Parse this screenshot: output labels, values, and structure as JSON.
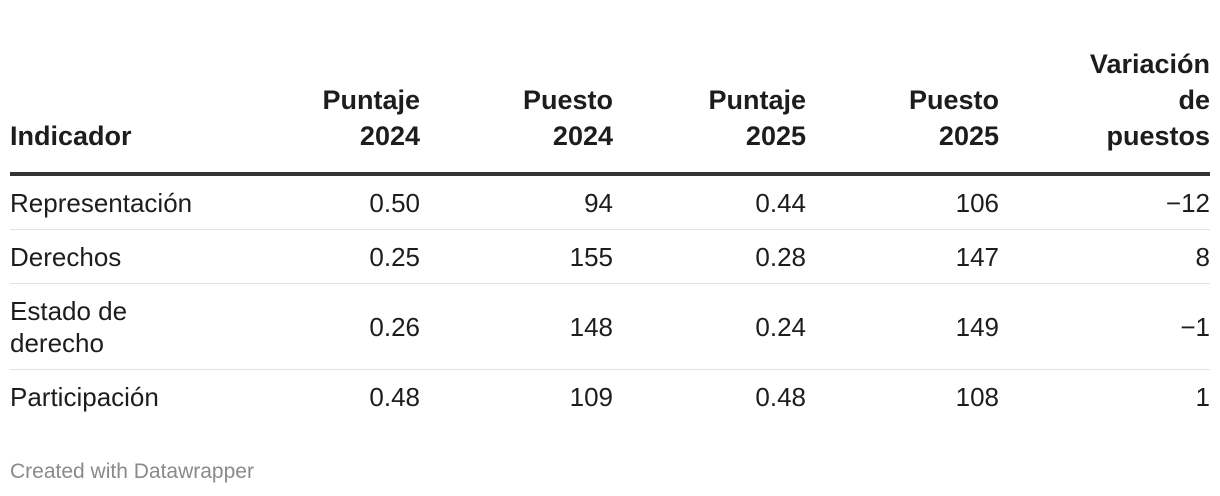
{
  "chart_data": {
    "type": "table",
    "columns": [
      [
        "Indicador"
      ],
      [
        "Puntaje",
        "2024"
      ],
      [
        "Puesto",
        "2024"
      ],
      [
        "Puntaje",
        "2025"
      ],
      [
        "Puesto",
        "2025"
      ],
      [
        "Variación",
        "de",
        "puestos"
      ]
    ],
    "rows": [
      {
        "indicador": [
          "Representación"
        ],
        "puntaje_2024": "0.50",
        "puesto_2024": "94",
        "puntaje_2025": "0.44",
        "puesto_2025": "106",
        "variacion": "−12"
      },
      {
        "indicador": [
          "Derechos"
        ],
        "puntaje_2024": "0.25",
        "puesto_2024": "155",
        "puntaje_2025": "0.28",
        "puesto_2025": "147",
        "variacion": "8"
      },
      {
        "indicador": [
          "Estado de",
          "derecho"
        ],
        "puntaje_2024": "0.26",
        "puesto_2024": "148",
        "puntaje_2025": "0.24",
        "puesto_2025": "149",
        "variacion": "−1"
      },
      {
        "indicador": [
          "Participación"
        ],
        "puntaje_2024": "0.48",
        "puesto_2024": "109",
        "puntaje_2025": "0.48",
        "puesto_2025": "108",
        "variacion": "1"
      }
    ]
  },
  "footer": {
    "credit": "Created with Datawrapper"
  }
}
